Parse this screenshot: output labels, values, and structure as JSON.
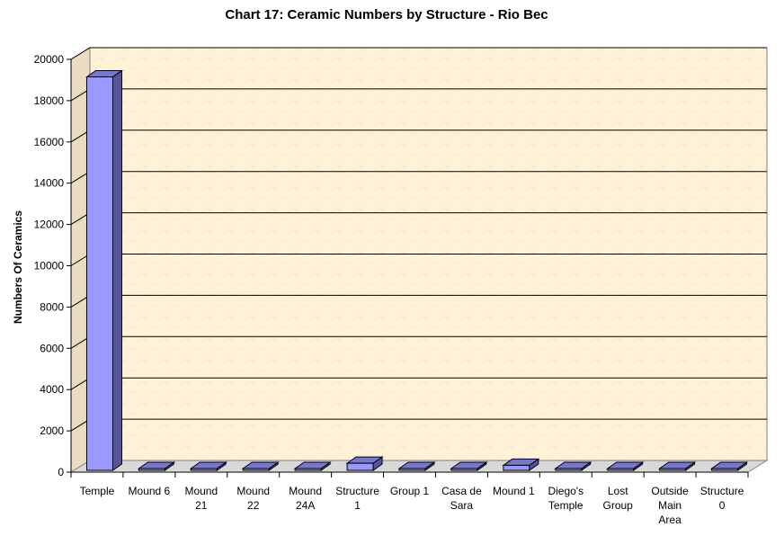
{
  "chart_data": {
    "type": "bar",
    "title": "Chart 17: Ceramic Numbers by Structure - Rio Bec",
    "xlabel": "",
    "ylabel": "Numbers Of Ceramics",
    "ylim": [
      0,
      20000
    ],
    "yticks": [
      0,
      2000,
      4000,
      6000,
      8000,
      10000,
      12000,
      14000,
      16000,
      18000,
      20000
    ],
    "grid": true,
    "legend": "none",
    "categories": [
      [
        "Temple"
      ],
      [
        "Mound 6"
      ],
      [
        "Mound",
        "21"
      ],
      [
        "Mound",
        "22"
      ],
      [
        "Mound",
        "24A"
      ],
      [
        "Structure",
        "1"
      ],
      [
        "Group 1"
      ],
      [
        "Casa de",
        "Sara"
      ],
      [
        "Mound 1"
      ],
      [
        "Diego's",
        "Temple"
      ],
      [
        "Lost",
        "Group"
      ],
      [
        "Outside",
        "Main",
        "Area"
      ],
      [
        "Structure",
        "0"
      ]
    ],
    "values": [
      19150,
      60,
      50,
      150,
      50,
      430,
      40,
      30,
      330,
      40,
      40,
      170,
      40
    ],
    "colors": {
      "bar_front": "#9999ff",
      "bar_side": "#555599",
      "bar_top": "#7777cc",
      "plot_wall": "#fff2d6",
      "plot_floor": "#d8d8d8"
    }
  }
}
